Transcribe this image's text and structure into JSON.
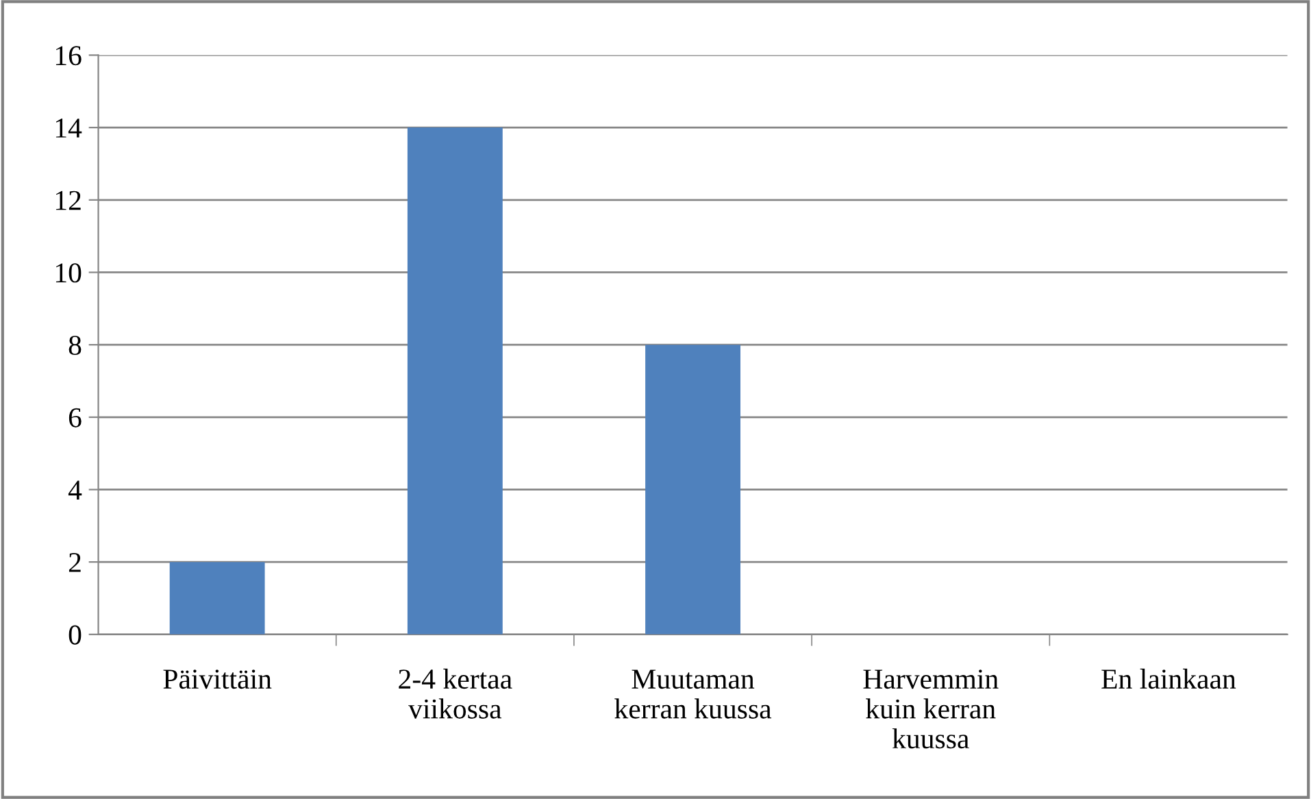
{
  "chart_data": {
    "type": "bar",
    "categories": [
      "Päivittäin",
      "2-4 kertaa\nviikossa",
      "Muutaman\nkerran kuussa",
      "Harvemmin\nkuin kerran\nkuussa",
      "En lainkaan"
    ],
    "values": [
      2,
      14,
      8,
      0,
      0
    ],
    "color": "#4f81bd",
    "ylim": [
      0,
      16
    ],
    "yticks": [
      0,
      2,
      4,
      6,
      8,
      10,
      12,
      14,
      16
    ],
    "grid": "y"
  }
}
